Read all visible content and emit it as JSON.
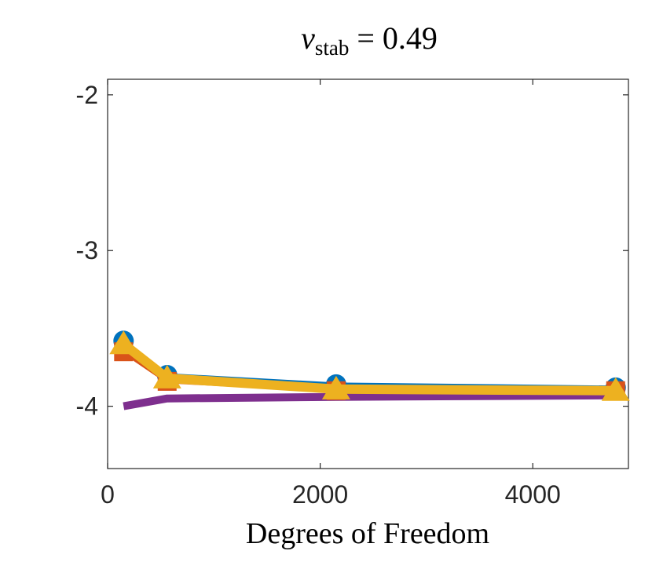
{
  "chart_data": {
    "type": "line",
    "title": {
      "symbol": "ν",
      "subscript": "stab",
      "rest": " = 0.49"
    },
    "xlabel": "Degrees of Freedom",
    "ylabel": "",
    "xlim": [
      0,
      4900
    ],
    "ylim": [
      -4.4,
      -1.9
    ],
    "xticks": [
      0,
      2000,
      4000
    ],
    "xtick_labels": [
      "0",
      "2000",
      "4000"
    ],
    "yticks": [
      -2,
      -3,
      -4
    ],
    "ytick_labels": [
      "-2",
      "-3",
      "-4"
    ],
    "grid": false,
    "series": [
      {
        "color": "#7E2F8E",
        "marker": "none",
        "x": [
          150,
          560,
          2150,
          4780
        ],
        "y": [
          -4.0,
          -3.95,
          -3.94,
          -3.93
        ]
      },
      {
        "color": "#0072BD",
        "marker": "circle",
        "x": [
          150,
          560,
          2150,
          4780
        ],
        "y": [
          -3.58,
          -3.8,
          -3.86,
          -3.88
        ]
      },
      {
        "color": "#D95319",
        "marker": "square",
        "x": [
          150,
          560,
          2150,
          4780
        ],
        "y": [
          -3.65,
          -3.84,
          -3.9,
          -3.9
        ]
      },
      {
        "color": "#EDB120",
        "marker": "triangle",
        "x": [
          150,
          560,
          2150,
          4780
        ],
        "y": [
          -3.6,
          -3.82,
          -3.89,
          -3.9
        ]
      }
    ]
  }
}
